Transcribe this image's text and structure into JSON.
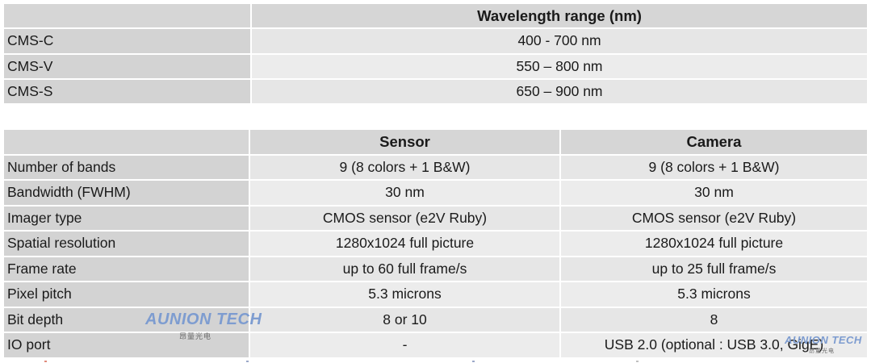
{
  "table1": {
    "header": "Wavelength range (nm)",
    "rows": [
      {
        "label": "CMS-C",
        "value": "400 - 700 nm"
      },
      {
        "label": "CMS-V",
        "value": "550 – 800 nm"
      },
      {
        "label": "CMS-S",
        "value": "650 – 900 nm"
      }
    ]
  },
  "table2": {
    "headers": [
      "Sensor",
      "Camera"
    ],
    "rows": [
      {
        "label": "Number of bands",
        "sensor": "9 (8 colors + 1 B&W)",
        "camera": "9 (8 colors + 1 B&W)"
      },
      {
        "label": "Bandwidth (FWHM)",
        "sensor": "30 nm",
        "camera": "30 nm"
      },
      {
        "label": "Imager type",
        "sensor": "CMOS sensor (e2V Ruby)",
        "camera": "CMOS sensor (e2V Ruby)"
      },
      {
        "label": "Spatial resolution",
        "sensor": "1280x1024 full picture",
        "camera": "1280x1024 full picture"
      },
      {
        "label": "Frame rate",
        "sensor": "up to 60 full frame/s",
        "camera": "up to 25 full frame/s"
      },
      {
        "label": "Pixel pitch",
        "sensor": "5.3 microns",
        "camera": "5.3 microns"
      },
      {
        "label": "Bit depth",
        "sensor": "8 or 10",
        "camera": "8"
      },
      {
        "label": "IO port",
        "sensor": "-",
        "camera": "USB 2.0 (optional : USB 3.0, GigE)"
      }
    ]
  },
  "watermark": {
    "text": "AUNION TECH",
    "subtext": "昂量光电",
    "color": "#7d9cd0"
  }
}
